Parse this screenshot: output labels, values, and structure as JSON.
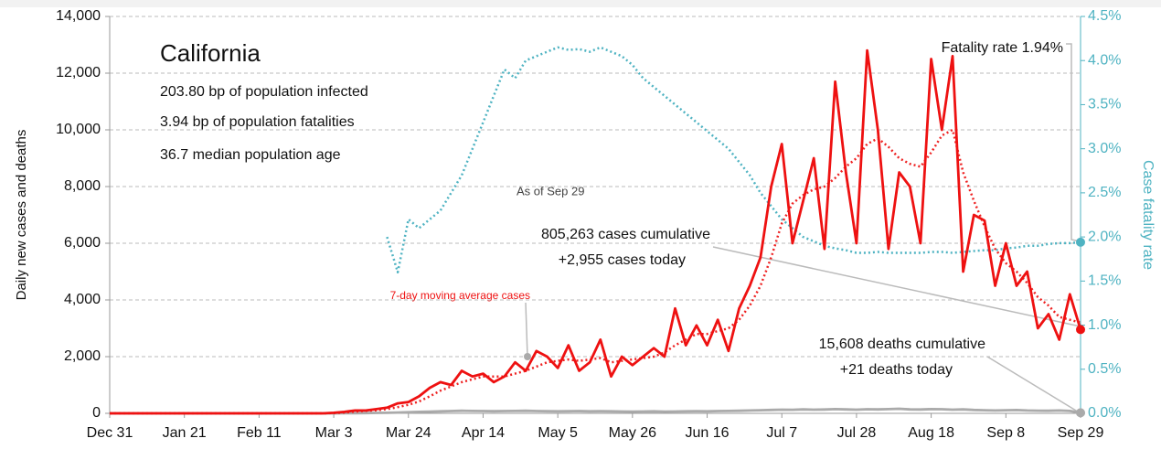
{
  "chart_data": {
    "type": "line",
    "title": "California",
    "annotations": {
      "infected": "203.80 bp of population infected",
      "fatalities": "3.94 bp of population fatalities",
      "age": "36.7 median population age",
      "as_of": "As of Sep 29",
      "cases_cum": "805,263 cases cumulative",
      "cases_today": "+2,955 cases today",
      "deaths_cum": "15,608 deaths cumulative",
      "deaths_today": "+21 deaths today",
      "fatality": "Fatality rate 1.94%",
      "moving_avg": "7-day moving average cases"
    },
    "y_label": "Daily new cases and deaths",
    "y2_label": "Case fatality rate",
    "x": [
      0,
      60,
      63,
      66,
      69,
      72,
      75,
      78,
      81,
      84,
      87,
      90,
      93,
      96,
      99,
      102,
      105,
      108,
      111,
      114,
      117,
      120,
      123,
      126,
      129,
      132,
      135,
      138,
      141,
      144,
      147,
      150,
      153,
      156,
      159,
      162,
      165,
      168,
      171,
      174,
      177,
      180,
      183,
      186,
      189,
      192,
      195,
      198,
      201,
      204,
      207,
      210,
      213,
      216,
      219,
      222,
      225,
      228,
      231,
      234,
      237,
      240,
      243,
      246,
      249,
      252,
      255,
      258,
      261,
      264,
      267,
      270,
      273
    ],
    "xlim": [
      0,
      273
    ],
    "xticks": [
      {
        "value": 0,
        "label": "Dec 31"
      },
      {
        "value": 21,
        "label": "Jan 21"
      },
      {
        "value": 42,
        "label": "Feb 11"
      },
      {
        "value": 63,
        "label": "Mar 3"
      },
      {
        "value": 84,
        "label": "Mar 24"
      },
      {
        "value": 105,
        "label": "Apr 14"
      },
      {
        "value": 126,
        "label": "May 5"
      },
      {
        "value": 147,
        "label": "May 26"
      },
      {
        "value": 168,
        "label": "Jun 16"
      },
      {
        "value": 189,
        "label": "Jul 7"
      },
      {
        "value": 210,
        "label": "Jul 28"
      },
      {
        "value": 231,
        "label": "Aug 18"
      },
      {
        "value": 252,
        "label": "Sep 8"
      },
      {
        "value": 273,
        "label": "Sep 29"
      }
    ],
    "ylim": [
      0,
      14000
    ],
    "yticks": [
      0,
      {
        "value": 2000,
        "label": "2,000"
      },
      {
        "value": 4000,
        "label": "4,000"
      },
      {
        "value": 6000,
        "label": "6,000"
      },
      {
        "value": 8000,
        "label": "8,000"
      },
      {
        "value": 10000,
        "label": "10,000"
      },
      {
        "value": 12000,
        "label": "12,000"
      },
      {
        "value": 14000,
        "label": "14,000"
      }
    ],
    "y2lim": [
      0,
      4.5
    ],
    "y2ticks": [
      {
        "value": 0,
        "label": "0.0%"
      },
      {
        "value": 0.5,
        "label": "0.5%"
      },
      {
        "value": 1,
        "label": "1.0%"
      },
      {
        "value": 1.5,
        "label": "1.5%"
      },
      {
        "value": 2,
        "label": "2.0%"
      },
      {
        "value": 2.5,
        "label": "2.5%"
      },
      {
        "value": 3,
        "label": "3.0%"
      },
      {
        "value": 3.5,
        "label": "3.5%"
      },
      {
        "value": 4,
        "label": "4.0%"
      },
      {
        "value": 4.5,
        "label": "4.5%"
      }
    ],
    "grid": true,
    "series": [
      {
        "color": "#4fb3c2",
        "style": "dotted",
        "axis": "y2",
        "values": [
          null,
          null,
          null,
          null,
          null,
          null,
          null,
          2.0,
          1.6,
          2.2,
          2.1,
          2.2,
          2.3,
          2.5,
          2.7,
          3.0,
          3.3,
          3.6,
          3.9,
          3.8,
          4.0,
          4.05,
          4.1,
          4.15,
          4.12,
          4.13,
          4.1,
          4.15,
          4.1,
          4.05,
          3.95,
          3.8,
          3.7,
          3.6,
          3.5,
          3.4,
          3.3,
          3.2,
          3.1,
          3.0,
          2.85,
          2.7,
          2.5,
          2.35,
          2.2,
          2.1,
          2.0,
          1.95,
          1.9,
          1.87,
          1.85,
          1.82,
          1.82,
          1.83,
          1.82,
          1.82,
          1.82,
          1.82,
          1.83,
          1.83,
          1.82,
          1.83,
          1.84,
          1.85,
          1.85,
          1.87,
          1.88,
          1.9,
          1.9,
          1.92,
          1.93,
          1.93,
          1.94
        ]
      },
      {
        "color": "#aaaaaa",
        "style": "solid",
        "values": [
          0,
          0,
          1,
          2,
          5,
          10,
          15,
          20,
          30,
          40,
          50,
          60,
          70,
          80,
          90,
          85,
          80,
          75,
          80,
          85,
          90,
          80,
          75,
          70,
          75,
          80,
          70,
          75,
          70,
          65,
          60,
          65,
          70,
          60,
          65,
          70,
          75,
          70,
          80,
          85,
          90,
          100,
          110,
          120,
          130,
          125,
          140,
          130,
          135,
          150,
          140,
          130,
          145,
          140,
          150,
          160,
          140,
          135,
          150,
          145,
          130,
          140,
          120,
          110,
          100,
          110,
          115,
          100,
          95,
          90,
          100,
          85,
          21
        ]
      },
      {
        "color": "#ee2222",
        "style": "dotted",
        "values": [
          0,
          0,
          10,
          30,
          60,
          90,
          110,
          150,
          220,
          300,
          420,
          600,
          800,
          950,
          1100,
          1200,
          1300,
          1300,
          1300,
          1400,
          1500,
          1650,
          1800,
          1850,
          1900,
          1850,
          1900,
          1950,
          1800,
          1850,
          1900,
          1950,
          2000,
          2150,
          2400,
          2600,
          2800,
          2800,
          2900,
          3000,
          3300,
          3800,
          4500,
          5500,
          6700,
          7400,
          7700,
          7900,
          8000,
          8300,
          8700,
          9000,
          9500,
          9700,
          9400,
          9000,
          8800,
          8700,
          9200,
          9800,
          10000,
          8500,
          7500,
          6600,
          5800,
          5300,
          5000,
          4600,
          4100,
          3800,
          3400,
          3300,
          3200
        ]
      },
      {
        "color": "#ee1111",
        "style": "solid",
        "values": [
          0,
          0,
          20,
          50,
          100,
          100,
          150,
          200,
          350,
          400,
          600,
          900,
          1100,
          1000,
          1500,
          1300,
          1400,
          1100,
          1300,
          1800,
          1500,
          2200,
          2000,
          1600,
          2400,
          1500,
          1800,
          2600,
          1300,
          2000,
          1700,
          2000,
          2300,
          2000,
          3700,
          2400,
          3100,
          2400,
          3300,
          2200,
          3700,
          4500,
          5500,
          8000,
          9500,
          6000,
          7500,
          9000,
          5800,
          11700,
          8500,
          6000,
          12800,
          10000,
          5800,
          8500,
          8000,
          6000,
          12500,
          10000,
          12600,
          5000,
          7000,
          6800,
          4500,
          6000,
          4500,
          5000,
          3000,
          3500,
          2600,
          4200,
          2955
        ]
      }
    ]
  }
}
